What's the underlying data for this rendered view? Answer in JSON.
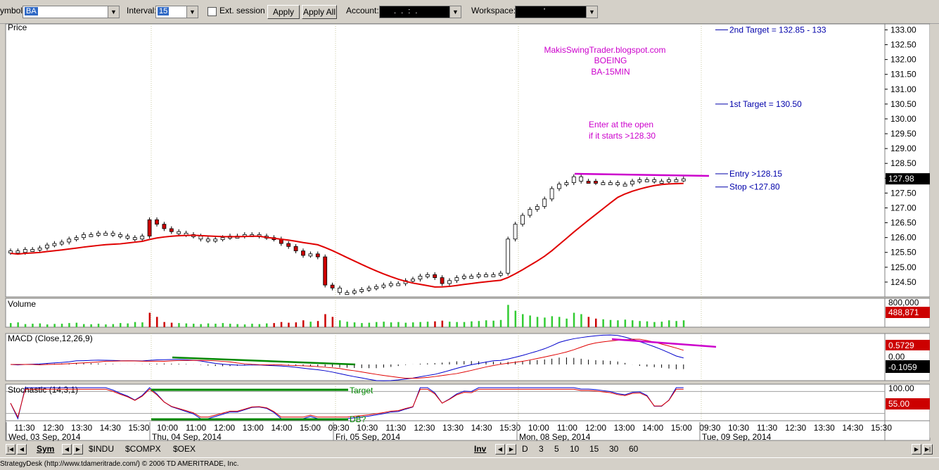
{
  "toolbar": {
    "symbol_label": "ymbol:",
    "symbol_value": "BA",
    "interval_label": "Interval:",
    "interval_value": "15",
    "ext_session_label": "Ext. session",
    "apply_label": "Apply",
    "apply_all_label": "Apply All",
    "account_label": "Account:",
    "account_value": ".  .  :  .",
    "workspace_label": "Workspace:",
    "workspace_value": "'"
  },
  "panels": {
    "price_title": "Price",
    "volume_title": "Volume",
    "macd_title": "MACD (Close,12,26,9)",
    "stoch_title": "Stochastic (14,3,1)"
  },
  "annotations": {
    "blog": "MakisSwingTrader.blogspot.com",
    "company": "BOEING",
    "symbol_interval": "BA-15MIN",
    "enter_line1": "Enter at the open",
    "enter_line2": "if it starts >128.30",
    "target2": "2nd Target = 132.85 - 133",
    "target1": "1st Target = 130.50",
    "entry": "Entry >128.15",
    "stop": "Stop <127.80",
    "stoch_target": "Target",
    "stoch_db": "DB?"
  },
  "readouts": {
    "last_price": "127.98",
    "volume": "488,871",
    "volume_axis_top": "800,000",
    "macd_1": "0.5729",
    "macd_2": "0.00",
    "macd_3": "-0.1059",
    "stoch_top": "100.00",
    "stoch_val": "55.00"
  },
  "date_labels": [
    "Wed, 03 Sep, 2014",
    "Thu, 04 Sep, 2014",
    "Fri, 05 Sep, 2014",
    "Mon, 08 Sep, 2014",
    "Tue, 09 Sep, 2014"
  ],
  "bottom": {
    "sym_tab": "Sym",
    "tabs": [
      "$INDU",
      "$COMPX",
      "$OEX"
    ],
    "inv": "Inv",
    "intervals": [
      "D",
      "3",
      "5",
      "10",
      "15",
      "30",
      "60"
    ]
  },
  "status": "StrategyDesk (http://www.tdameritrade.com/) © 2006 TD AMERITRADE, Inc.",
  "colors": {
    "candle_up": "#ffffff",
    "candle_down": "#cc0000",
    "ma": "#e00000",
    "volume_up": "#33cc33",
    "volume_down": "#cc0000",
    "macd": "#0000cc",
    "signal": "#e00000",
    "annotation_magenta": "#cc00cc",
    "annotation_blue": "#0000aa",
    "green_line": "#008800"
  },
  "chart_data": {
    "type": "candlestick",
    "symbol": "BA",
    "interval": "15",
    "price_ticks": [
      133.0,
      132.5,
      132.0,
      131.5,
      131.0,
      130.5,
      130.0,
      129.5,
      129.0,
      128.5,
      128.0,
      127.5,
      127.0,
      126.5,
      126.0,
      125.5,
      125.0,
      124.5
    ],
    "ylim": [
      124.0,
      133.2
    ],
    "time_ticks": [
      "11:30",
      "12:30",
      "13:30",
      "14:30",
      "15:30",
      "10:00",
      "11:00",
      "12:00",
      "13:00",
      "14:00",
      "15:00",
      "09:30",
      "10:30",
      "11:30",
      "12:30",
      "13:30",
      "14:30",
      "15:30",
      "10:00",
      "11:00",
      "12:00",
      "13:00",
      "14:00",
      "15:00",
      "09:30",
      "10:30",
      "11:30",
      "12:30",
      "13:30",
      "14:30",
      "15:30"
    ],
    "closes": [
      125.55,
      125.5,
      125.6,
      125.6,
      125.65,
      125.75,
      125.8,
      125.85,
      125.95,
      126.0,
      126.1,
      126.1,
      126.15,
      126.15,
      126.1,
      126.05,
      126.0,
      125.95,
      126.05,
      126.6,
      126.45,
      126.3,
      126.2,
      126.15,
      126.1,
      126.05,
      125.95,
      125.9,
      125.95,
      126.0,
      126.05,
      126.05,
      126.1,
      126.1,
      126.05,
      126.0,
      125.95,
      125.8,
      125.7,
      125.55,
      125.4,
      125.45,
      125.35,
      124.4,
      124.3,
      124.15,
      124.15,
      124.2,
      124.25,
      124.3,
      124.35,
      124.4,
      124.45,
      124.45,
      124.55,
      124.6,
      124.7,
      124.75,
      124.65,
      124.45,
      124.55,
      124.65,
      124.7,
      124.7,
      124.75,
      124.75,
      124.75,
      124.8,
      125.95,
      126.45,
      126.75,
      126.95,
      127.05,
      127.3,
      127.65,
      127.8,
      127.85,
      128.05,
      127.9,
      127.9,
      127.85,
      127.85,
      127.85,
      127.8,
      127.8,
      127.9,
      127.95,
      127.95,
      127.9,
      127.9,
      127.95,
      127.95,
      127.98
    ],
    "down_candles": [
      19,
      20,
      21,
      22,
      36,
      37,
      38,
      39,
      40,
      42,
      43,
      44,
      58,
      59,
      79,
      80
    ],
    "volume": [
      120,
      140,
      90,
      100,
      110,
      80,
      95,
      100,
      120,
      130,
      90,
      85,
      100,
      80,
      90,
      120,
      110,
      150,
      140,
      420,
      300,
      150,
      130,
      120,
      110,
      100,
      90,
      110,
      100,
      120,
      100,
      90,
      80,
      100,
      90,
      110,
      120,
      150,
      130,
      140,
      200,
      160,
      180,
      380,
      300,
      200,
      160,
      140,
      120,
      130,
      150,
      160,
      140,
      150,
      130,
      140,
      150,
      160,
      170,
      190,
      160,
      150,
      150,
      170,
      180,
      200,
      190,
      210,
      650,
      480,
      380,
      340,
      300,
      280,
      320,
      300,
      250,
      420,
      380,
      300,
      250,
      230,
      210,
      200,
      220,
      200,
      180,
      170,
      150,
      160,
      200,
      180,
      200,
      488.871
    ],
    "ma_line": "20-period moving average (red)",
    "macd": {
      "macd_last": 0.5729,
      "signal_last": -0.1059,
      "zero": 0.0
    },
    "stochastic": {
      "params": "14,3,1",
      "last": 55.0,
      "levels": [
        80,
        20
      ],
      "axis_top": 100.0
    },
    "levels": {
      "target2": "132.85 - 133",
      "target1": 130.5,
      "entry": 128.15,
      "stop": 127.8
    }
  }
}
